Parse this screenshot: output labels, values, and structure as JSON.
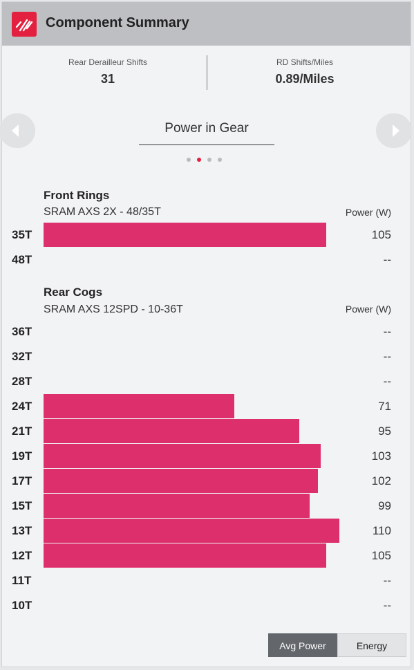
{
  "header": {
    "title": "Component Summary",
    "logo_icon": "sram-logo-icon",
    "accent_color": "#e3203f"
  },
  "stats": [
    {
      "label": "Rear Derailleur Shifts",
      "value": "31"
    },
    {
      "label": "RD Shifts/Miles",
      "value": "0.89/Miles"
    }
  ],
  "carousel": {
    "title": "Power in Gear",
    "prev_icon": "chevron-left-icon",
    "next_icon": "chevron-right-icon",
    "page_count": 4,
    "active_page": 2
  },
  "front": {
    "title": "Front Rings",
    "subtitle": "SRAM AXS 2X - 48/35T",
    "power_header": "Power (W)",
    "rows": [
      {
        "label": "35T",
        "value": "105",
        "power": 105
      },
      {
        "label": "48T",
        "value": "--",
        "power": 0
      }
    ]
  },
  "rear": {
    "title": "Rear Cogs",
    "subtitle": "SRAM AXS 12SPD - 10-36T",
    "power_header": "Power (W)",
    "rows": [
      {
        "label": "36T",
        "value": "--",
        "power": 0
      },
      {
        "label": "32T",
        "value": "--",
        "power": 0
      },
      {
        "label": "28T",
        "value": "--",
        "power": 0
      },
      {
        "label": "24T",
        "value": "71",
        "power": 71
      },
      {
        "label": "21T",
        "value": "95",
        "power": 95
      },
      {
        "label": "19T",
        "value": "103",
        "power": 103
      },
      {
        "label": "17T",
        "value": "102",
        "power": 102
      },
      {
        "label": "15T",
        "value": "99",
        "power": 99
      },
      {
        "label": "13T",
        "value": "110",
        "power": 110
      },
      {
        "label": "12T",
        "value": "105",
        "power": 105
      },
      {
        "label": "11T",
        "value": "--",
        "power": 0
      },
      {
        "label": "10T",
        "value": "--",
        "power": 0
      }
    ]
  },
  "bar_color": "#dc2f6b",
  "bar_max_power": 110,
  "toggle": {
    "avg_power_label": "Avg Power",
    "energy_label": "Energy",
    "active": "avg_power"
  }
}
